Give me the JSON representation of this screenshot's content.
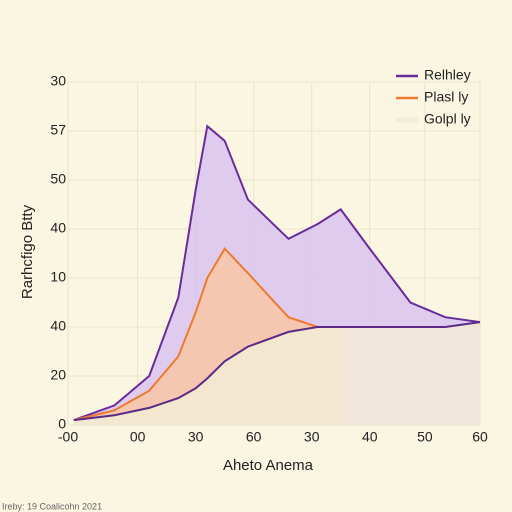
{
  "chart_data": {
    "type": "area",
    "x_label": "Aheto Anema",
    "y_label": "Rarhcfigo Btty",
    "footer": "Ireby: 19 Coalicohn 2021",
    "x": [
      0.1,
      0.8,
      1.4,
      1.9,
      2.2,
      2.4,
      2.7,
      3.1,
      3.8,
      4.3,
      4.7,
      5.2,
      5.9,
      6.5,
      7.1
    ],
    "series": [
      {
        "name": "Relhley",
        "color": "#6a2c9c",
        "fill": "#d9c3ee",
        "values": [
          0.1,
          0.4,
          1.0,
          2.6,
          4.8,
          6.1,
          5.8,
          4.6,
          3.8,
          4.1,
          4.4,
          3.6,
          2.5,
          2.2,
          2.1
        ]
      },
      {
        "name": "Plasl ly",
        "color": "#ee7a30",
        "fill": "#f9c6a4",
        "values": [
          0.1,
          0.3,
          0.7,
          1.4,
          2.3,
          3.0,
          3.6,
          3.1,
          2.2,
          2.0,
          2.0,
          null,
          null,
          null,
          null
        ]
      },
      {
        "name": "Golpl ly",
        "color": "#5a2a85",
        "fill": "#f3ecd6",
        "values": [
          0.1,
          0.2,
          0.35,
          0.55,
          0.75,
          0.95,
          1.3,
          1.6,
          1.9,
          2.0,
          2.0,
          2.0,
          2.0,
          2.0,
          2.1
        ]
      }
    ],
    "xlim": [
      0,
      7.1
    ],
    "xticks": [
      {
        "value": 0,
        "label": "-00"
      },
      {
        "value": 1.2,
        "label": "00"
      },
      {
        "value": 2.2,
        "label": "30"
      },
      {
        "value": 3.2,
        "label": "60"
      },
      {
        "value": 4.2,
        "label": "30"
      },
      {
        "value": 5.2,
        "label": "40"
      },
      {
        "value": 6.15,
        "label": "50"
      },
      {
        "value": 7.1,
        "label": "60"
      }
    ],
    "ylim": [
      0,
      7
    ],
    "yticks": [
      0,
      {
        "value": 1,
        "label": "20"
      },
      {
        "value": 2,
        "label": "40"
      },
      {
        "value": 3,
        "label": "10"
      },
      {
        "value": 4,
        "label": "40"
      },
      {
        "value": 5,
        "label": "50"
      },
      {
        "value": 6,
        "label": "57"
      },
      {
        "value": 7,
        "label": "30"
      }
    ],
    "grid": true,
    "legend": "upper right"
  }
}
